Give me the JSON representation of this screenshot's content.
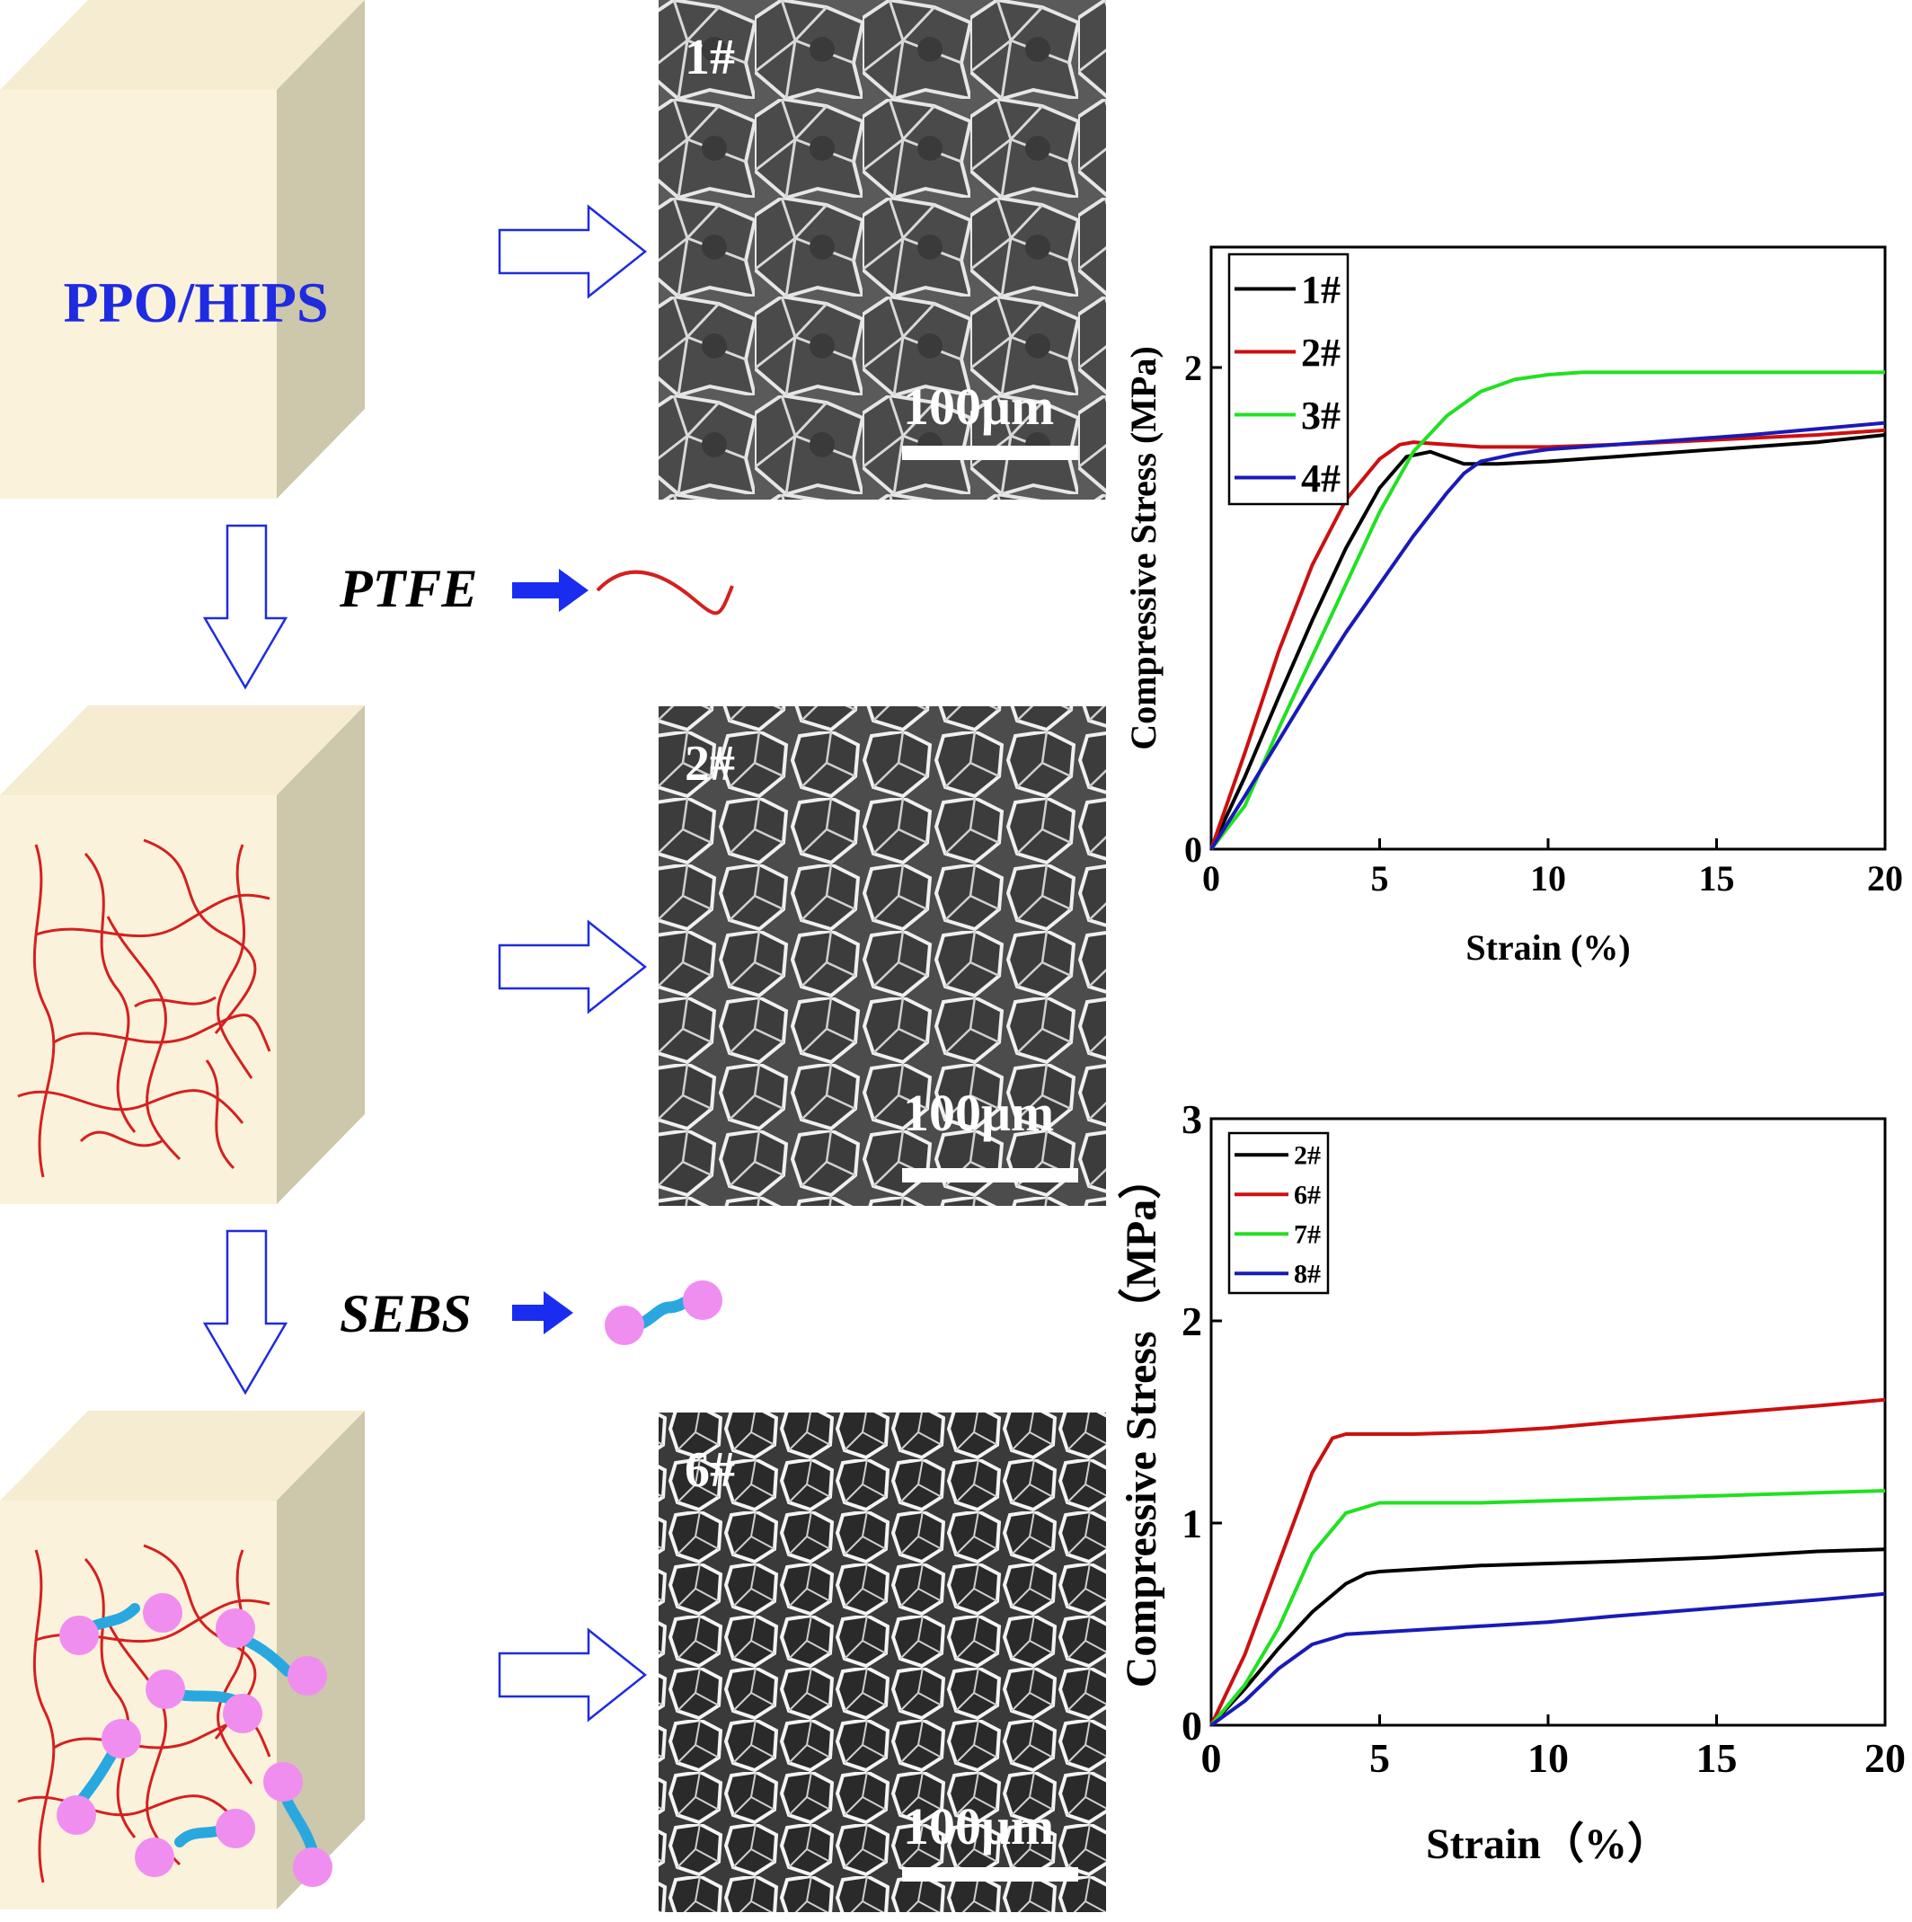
{
  "diagram": {
    "material_label": "PPO/HIPS",
    "additive_1": "PTFE",
    "additive_2": "SEBS",
    "colors": {
      "cube_front": "#fbf2db",
      "cube_top": "#f5ecd2",
      "cube_side": "#cdc7ab",
      "fiber": "#d42020",
      "sebs_bead": "#f08ef0",
      "sebs_link": "#29a8e0",
      "material_label": "#1f2be0",
      "arrow_outline": "#1f2be0",
      "arrow_solid": "#1a2cf0"
    }
  },
  "micrographs": [
    {
      "label": "1#",
      "scale_bar": "100μm"
    },
    {
      "label": "2#",
      "scale_bar": "100μm"
    },
    {
      "label": "6#",
      "scale_bar": "100μm"
    }
  ],
  "chart_data": [
    {
      "type": "line",
      "xlabel": "Strain (%)",
      "ylabel": "Compressive Stress (MPa)",
      "xlim": [
        0,
        20
      ],
      "ylim": [
        0,
        2.5
      ],
      "xticks": [
        0,
        5,
        10,
        15,
        20
      ],
      "yticks": [
        0,
        2
      ],
      "grid": false,
      "legend_position": "top-left",
      "series": [
        {
          "name": "1#",
          "color": "#000000",
          "x": [
            0,
            1,
            2,
            3,
            4,
            5,
            5.8,
            6.5,
            7.5,
            8.5,
            10,
            12,
            15,
            18,
            20
          ],
          "y": [
            0,
            0.3,
            0.63,
            0.95,
            1.25,
            1.5,
            1.63,
            1.65,
            1.6,
            1.6,
            1.61,
            1.63,
            1.66,
            1.69,
            1.72
          ]
        },
        {
          "name": "2#",
          "color": "#cc1010",
          "x": [
            0,
            1,
            2,
            3,
            4,
            5,
            5.6,
            6,
            7,
            8,
            10,
            12,
            15,
            18,
            20
          ],
          "y": [
            0,
            0.4,
            0.82,
            1.18,
            1.45,
            1.62,
            1.68,
            1.69,
            1.68,
            1.67,
            1.67,
            1.68,
            1.7,
            1.72,
            1.74
          ]
        },
        {
          "name": "3#",
          "color": "#22e022",
          "x": [
            0,
            1,
            2,
            3,
            4,
            5,
            6,
            7,
            8,
            9,
            10,
            11,
            13,
            16,
            20
          ],
          "y": [
            0,
            0.18,
            0.5,
            0.8,
            1.1,
            1.4,
            1.65,
            1.8,
            1.9,
            1.95,
            1.97,
            1.98,
            1.98,
            1.98,
            1.98
          ]
        },
        {
          "name": "4#",
          "color": "#1a1ab8",
          "x": [
            0,
            1,
            2,
            3,
            4,
            5,
            6,
            7,
            7.5,
            8,
            9,
            10,
            13,
            16,
            20
          ],
          "y": [
            0,
            0.22,
            0.45,
            0.68,
            0.9,
            1.1,
            1.3,
            1.48,
            1.56,
            1.61,
            1.64,
            1.66,
            1.69,
            1.72,
            1.77
          ]
        }
      ]
    },
    {
      "type": "line",
      "xlabel": "Strain（%）",
      "ylabel": "Compressive Stress（MPa）",
      "xlim": [
        0,
        20
      ],
      "ylim": [
        0,
        3
      ],
      "xticks": [
        0,
        5,
        10,
        15,
        20
      ],
      "yticks": [
        0,
        1,
        2,
        3
      ],
      "grid": false,
      "legend_position": "top-left",
      "series": [
        {
          "name": "2#",
          "color": "#000000",
          "x": [
            0,
            1,
            2,
            3,
            4,
            4.6,
            5,
            6,
            8,
            10,
            12,
            15,
            18,
            20
          ],
          "y": [
            0,
            0.18,
            0.38,
            0.56,
            0.7,
            0.75,
            0.76,
            0.77,
            0.79,
            0.8,
            0.81,
            0.83,
            0.86,
            0.87
          ]
        },
        {
          "name": "6#",
          "color": "#cc1010",
          "x": [
            0,
            1,
            2,
            3,
            3.6,
            4,
            5,
            6,
            8,
            10,
            12,
            15,
            18,
            20
          ],
          "y": [
            0,
            0.35,
            0.8,
            1.25,
            1.42,
            1.44,
            1.44,
            1.44,
            1.45,
            1.47,
            1.5,
            1.54,
            1.58,
            1.61
          ]
        },
        {
          "name": "7#",
          "color": "#22e022",
          "x": [
            0,
            1,
            2,
            3,
            4,
            5,
            6,
            8,
            10,
            12,
            14,
            16,
            18,
            20
          ],
          "y": [
            0,
            0.2,
            0.48,
            0.85,
            1.05,
            1.1,
            1.1,
            1.1,
            1.11,
            1.12,
            1.13,
            1.14,
            1.15,
            1.16
          ]
        },
        {
          "name": "8#",
          "color": "#1a1ab8",
          "x": [
            0,
            1,
            2,
            3,
            4,
            5,
            6,
            8,
            10,
            12,
            15,
            18,
            20
          ],
          "y": [
            0,
            0.12,
            0.28,
            0.4,
            0.45,
            0.46,
            0.47,
            0.49,
            0.51,
            0.54,
            0.58,
            0.62,
            0.65
          ]
        }
      ]
    }
  ]
}
